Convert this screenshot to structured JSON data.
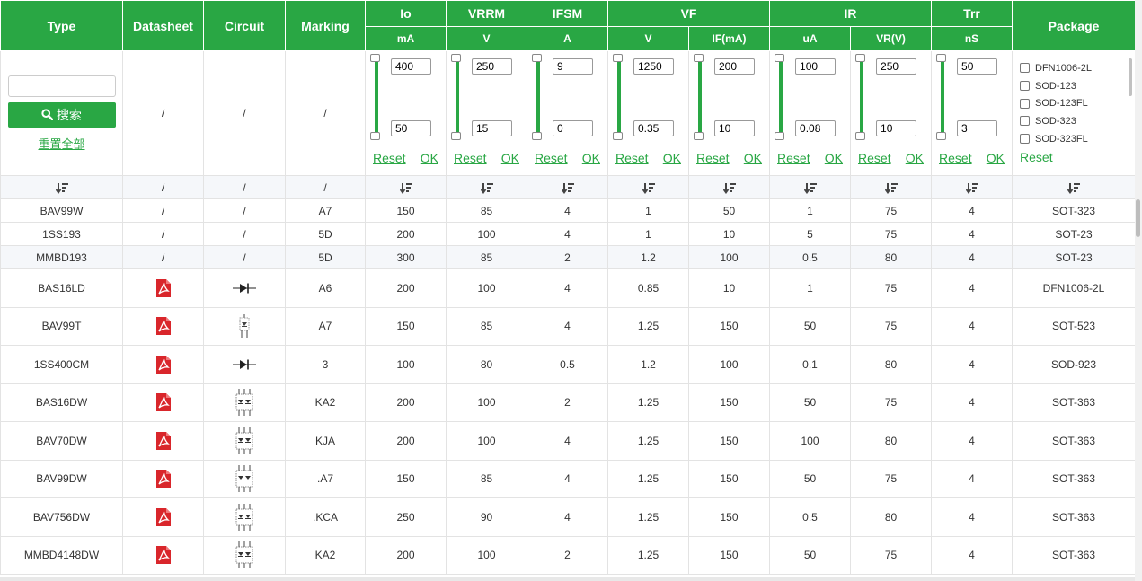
{
  "columns": {
    "type": "Type",
    "datasheet": "Datasheet",
    "circuit": "Circuit",
    "marking": "Marking",
    "io": {
      "label": "Io",
      "unit": "mA"
    },
    "vrrm": {
      "label": "VRRM",
      "unit": "V"
    },
    "ifsm": {
      "label": "IFSM",
      "unit": "A"
    },
    "vf": {
      "label": "VF",
      "unit1": "V",
      "unit2": "IF(mA)"
    },
    "ir": {
      "label": "IR",
      "unit1": "uA",
      "unit2": "VR(V)"
    },
    "trr": {
      "label": "Trr",
      "unit": "nS"
    },
    "package": "Package"
  },
  "search": {
    "button": "搜索",
    "reset_all": "重置全部",
    "value": ""
  },
  "filter_slash": "/",
  "filters": {
    "io": {
      "max": "400",
      "min": "50"
    },
    "vrrm": {
      "max": "250",
      "min": "15"
    },
    "ifsm": {
      "max": "9",
      "min": "0"
    },
    "vf": {
      "max": "1250",
      "min": "0.35"
    },
    "vf_if": {
      "max": "200",
      "min": "10"
    },
    "ir": {
      "max": "100",
      "min": "0.08"
    },
    "ir_vr": {
      "max": "250",
      "min": "10"
    },
    "trr": {
      "max": "50",
      "min": "3"
    },
    "reset_label": "Reset",
    "ok_label": "OK"
  },
  "package_options": [
    "DFN1006-2L",
    "SOD-123",
    "SOD-123FL",
    "SOD-323",
    "SOD-323FL"
  ],
  "package_reset": "Reset",
  "sort_icon": "sort-descending-icon",
  "accent_color": "#29a744",
  "rows": [
    {
      "type": "BAV99W",
      "datasheet": "/",
      "circuit": "/",
      "marking": "A7",
      "io": "150",
      "vrrm": "85",
      "ifsm": "4",
      "vf": "1",
      "if": "50",
      "ir": "1",
      "vr": "75",
      "trr": "4",
      "package": "SOT-323"
    },
    {
      "type": "1SS193",
      "datasheet": "/",
      "circuit": "/",
      "marking": "5D",
      "io": "200",
      "vrrm": "100",
      "ifsm": "4",
      "vf": "1",
      "if": "10",
      "ir": "5",
      "vr": "75",
      "trr": "4",
      "package": "SOT-23"
    },
    {
      "type": "MMBD193",
      "datasheet": "/",
      "circuit": "/",
      "marking": "5D",
      "io": "300",
      "vrrm": "85",
      "ifsm": "2",
      "vf": "1.2",
      "if": "100",
      "ir": "0.5",
      "vr": "80",
      "trr": "4",
      "package": "SOT-23"
    },
    {
      "type": "BAS16LD",
      "datasheet": "pdf-icon",
      "circuit": "single-diode",
      "marking": "A6",
      "io": "200",
      "vrrm": "100",
      "ifsm": "4",
      "vf": "0.85",
      "if": "10",
      "ir": "1",
      "vr": "75",
      "trr": "4",
      "package": "DFN1006-2L"
    },
    {
      "type": "BAV99T",
      "datasheet": "pdf-icon",
      "circuit": "series-diode",
      "marking": "A7",
      "io": "150",
      "vrrm": "85",
      "ifsm": "4",
      "vf": "1.25",
      "if": "150",
      "ir": "50",
      "vr": "75",
      "trr": "4",
      "package": "SOT-523"
    },
    {
      "type": "1SS400CM",
      "datasheet": "pdf-icon",
      "circuit": "single-diode",
      "marking": "3",
      "io": "100",
      "vrrm": "80",
      "ifsm": "0.5",
      "vf": "1.2",
      "if": "100",
      "ir": "0.1",
      "vr": "80",
      "trr": "4",
      "package": "SOD-923"
    },
    {
      "type": "BAS16DW",
      "datasheet": "pdf-icon",
      "circuit": "dual-diode-6pin",
      "marking": "KA2",
      "io": "200",
      "vrrm": "100",
      "ifsm": "2",
      "vf": "1.25",
      "if": "150",
      "ir": "50",
      "vr": "75",
      "trr": "4",
      "package": "SOT-363"
    },
    {
      "type": "BAV70DW",
      "datasheet": "pdf-icon",
      "circuit": "dual-diode-6pin",
      "marking": "KJA",
      "io": "200",
      "vrrm": "100",
      "ifsm": "4",
      "vf": "1.25",
      "if": "150",
      "ir": "100",
      "vr": "80",
      "trr": "4",
      "package": "SOT-363"
    },
    {
      "type": "BAV99DW",
      "datasheet": "pdf-icon",
      "circuit": "dual-diode-6pin",
      "marking": ".A7",
      "io": "150",
      "vrrm": "85",
      "ifsm": "4",
      "vf": "1.25",
      "if": "150",
      "ir": "50",
      "vr": "75",
      "trr": "4",
      "package": "SOT-363"
    },
    {
      "type": "BAV756DW",
      "datasheet": "pdf-icon",
      "circuit": "dual-diode-6pin",
      "marking": ".KCA",
      "io": "250",
      "vrrm": "90",
      "ifsm": "4",
      "vf": "1.25",
      "if": "150",
      "ir": "0.5",
      "vr": "80",
      "trr": "4",
      "package": "SOT-363"
    },
    {
      "type": "MMBD4148DW",
      "datasheet": "pdf-icon",
      "circuit": "dual-diode-6pin",
      "marking": "KA2",
      "io": "200",
      "vrrm": "100",
      "ifsm": "2",
      "vf": "1.25",
      "if": "150",
      "ir": "50",
      "vr": "75",
      "trr": "4",
      "package": "SOT-363"
    }
  ]
}
